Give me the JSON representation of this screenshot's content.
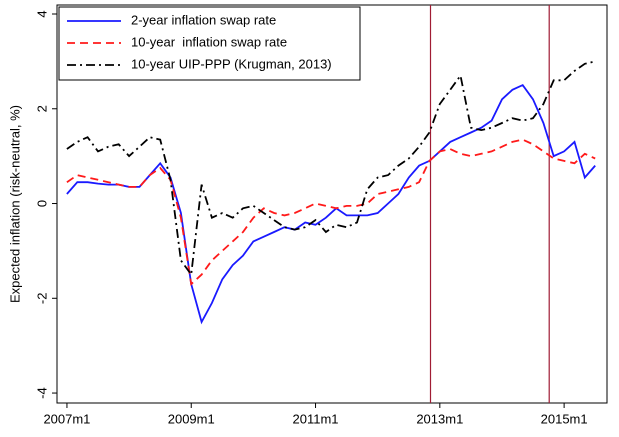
{
  "chart_data": {
    "type": "line",
    "ylabel": "Expected inflation (risk-neutral, %)",
    "x": [
      2007,
      2007.167,
      2007.333,
      2007.5,
      2007.667,
      2007.833,
      2008,
      2008.167,
      2008.333,
      2008.5,
      2008.667,
      2008.833,
      2009,
      2009.167,
      2009.333,
      2009.5,
      2009.667,
      2009.833,
      2010,
      2010.167,
      2010.333,
      2010.5,
      2010.667,
      2010.833,
      2011,
      2011.167,
      2011.333,
      2011.5,
      2011.667,
      2011.833,
      2012,
      2012.167,
      2012.333,
      2012.5,
      2012.667,
      2012.833,
      2013,
      2013.167,
      2013.333,
      2013.5,
      2013.667,
      2013.833,
      2014,
      2014.167,
      2014.333,
      2014.5,
      2014.667,
      2014.833,
      2015,
      2015.167,
      2015.333,
      2015.5
    ],
    "xlim": [
      2006.84,
      2015.69
    ],
    "xticks": [
      {
        "value": 2007,
        "label": "2007m1"
      },
      {
        "value": 2009,
        "label": "2009m1"
      },
      {
        "value": 2011,
        "label": "2011m1"
      },
      {
        "value": 2013,
        "label": "2013m1"
      },
      {
        "value": 2015,
        "label": "2015m1"
      }
    ],
    "ylim": [
      -4.21,
      4.19
    ],
    "yticks": [
      -4,
      -2,
      0,
      2,
      4
    ],
    "vlines": [
      2012.85,
      2014.76
    ],
    "vline_color": "#a01c34",
    "legend": "top-left",
    "series": [
      {
        "name": "2-year inflation swap rate",
        "color": "#1a1aff",
        "dash": "solid",
        "values": [
          0.2,
          0.45,
          0.45,
          0.42,
          0.4,
          0.4,
          0.35,
          0.35,
          0.6,
          0.85,
          0.55,
          -0.2,
          -1.7,
          -2.5,
          -2.1,
          -1.6,
          -1.3,
          -1.1,
          -0.8,
          -0.7,
          -0.6,
          -0.5,
          -0.55,
          -0.4,
          -0.45,
          -0.3,
          -0.1,
          -0.25,
          -0.25,
          -0.25,
          -0.2,
          0.0,
          0.2,
          0.55,
          0.8,
          0.9,
          1.1,
          1.3,
          1.4,
          1.5,
          1.6,
          1.75,
          2.2,
          2.4,
          2.5,
          2.2,
          1.7,
          1.0,
          1.1,
          1.3,
          0.55,
          0.8
        ]
      },
      {
        "name": "10-year  inflation swap rate",
        "color": "#ff1a1a",
        "dash": "dashed",
        "values": [
          0.45,
          0.6,
          0.55,
          0.5,
          0.45,
          0.4,
          0.35,
          0.35,
          0.6,
          0.75,
          0.5,
          -0.3,
          -1.7,
          -1.5,
          -1.2,
          -1.0,
          -0.8,
          -0.6,
          -0.3,
          -0.1,
          -0.2,
          -0.25,
          -0.2,
          -0.1,
          0.0,
          -0.05,
          -0.1,
          -0.05,
          -0.05,
          0.0,
          0.2,
          0.25,
          0.3,
          0.35,
          0.45,
          0.9,
          1.1,
          1.15,
          1.05,
          1.0,
          1.05,
          1.1,
          1.2,
          1.3,
          1.35,
          1.25,
          1.1,
          0.95,
          0.9,
          0.85,
          1.05,
          0.95
        ]
      },
      {
        "name": "10-year UIP-PPP (Krugman, 2013)",
        "color": "#000000",
        "dash": "dash-dot",
        "values": [
          1.15,
          1.3,
          1.4,
          1.1,
          1.2,
          1.25,
          1.0,
          1.2,
          1.4,
          1.35,
          0.5,
          -1.2,
          -1.5,
          0.4,
          -0.3,
          -0.2,
          -0.3,
          -0.1,
          -0.05,
          -0.2,
          -0.35,
          -0.5,
          -0.55,
          -0.5,
          -0.35,
          -0.6,
          -0.45,
          -0.5,
          -0.4,
          0.3,
          0.55,
          0.6,
          0.8,
          0.95,
          1.2,
          1.5,
          2.1,
          2.4,
          2.7,
          1.6,
          1.55,
          1.6,
          1.7,
          1.8,
          1.75,
          1.8,
          2.1,
          2.6,
          2.6,
          2.8,
          2.95,
          3.0
        ]
      }
    ]
  }
}
